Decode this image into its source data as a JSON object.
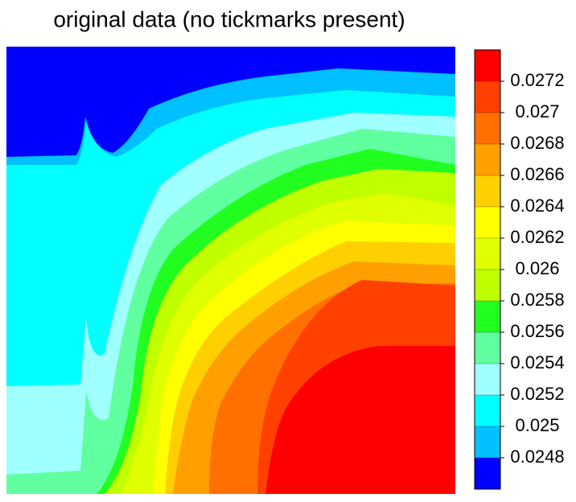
{
  "chart_data": {
    "type": "contour",
    "title": "original data (no tickmarks present)",
    "zlim": [
      0.0246,
      0.0274
    ],
    "zticks": [
      0.0248,
      0.025,
      0.0252,
      0.0254,
      0.0256,
      0.0258,
      0.026,
      0.0262,
      0.0264,
      0.0266,
      0.0268,
      0.027,
      0.0272
    ],
    "colors": [
      "#0000ff",
      "#00c0ff",
      "#00ffff",
      "#a0ffff",
      "#60ff9f",
      "#20ff20",
      "#c0ff00",
      "#e0ff00",
      "#ffff00",
      "#ffcf00",
      "#ff9f00",
      "#ff7000",
      "#ff4000",
      "#ff0000"
    ]
  }
}
